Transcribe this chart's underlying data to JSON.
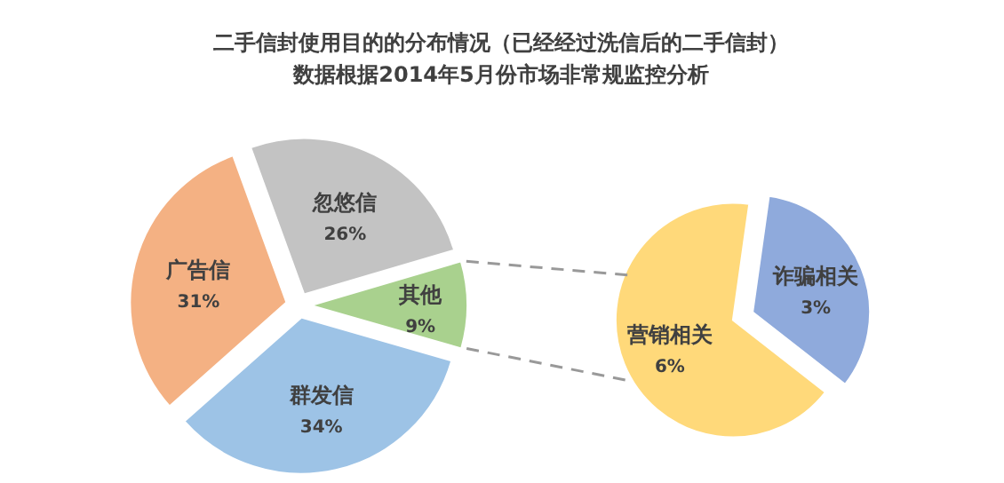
{
  "chart_data": [
    {
      "type": "pie",
      "title": "二手信封使用目的的分布情况（已经经过洗信后的二手信封）",
      "subtitle": "数据根据2014年5月份市场非常规监控分析",
      "categories": [
        "忽悠信",
        "其他",
        "群发信",
        "广告信"
      ],
      "values": [
        26,
        9,
        34,
        31
      ],
      "colors": [
        "#c3c3c3",
        "#a9d18e",
        "#9dc3e6",
        "#f4b183"
      ],
      "value_labels": [
        "26%",
        "9%",
        "34%",
        "31%"
      ]
    },
    {
      "type": "pie",
      "categories": [
        "诈骗相关",
        "营销相关"
      ],
      "values": [
        3,
        6
      ],
      "colors": [
        "#8faadc",
        "#ffd97a"
      ],
      "value_labels": [
        "3%",
        "6%"
      ]
    }
  ]
}
